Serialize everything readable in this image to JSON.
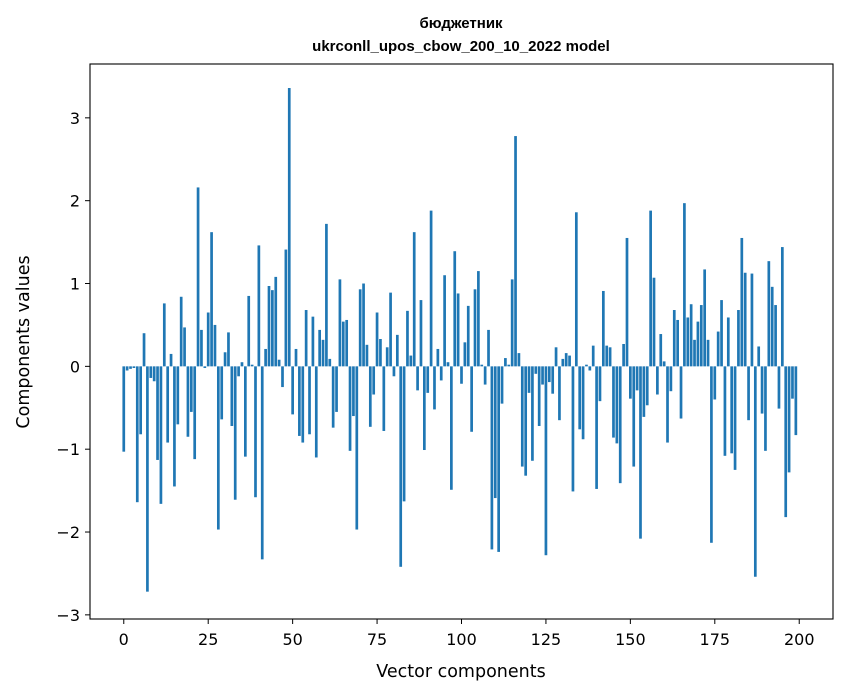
{
  "chart_data": {
    "type": "bar",
    "title": "бюджетник",
    "subtitle": "ukrconll_upos_cbow_200_10_2022 model",
    "xlabel": "Vector components",
    "ylabel": "Components values",
    "xlim": [
      -10,
      210
    ],
    "ylim": [
      -3.05,
      3.65
    ],
    "xticks": [
      0,
      25,
      50,
      75,
      100,
      125,
      150,
      175,
      200
    ],
    "yticks": [
      -3,
      -2,
      -1,
      0,
      1,
      2,
      3
    ],
    "ytick_labels": [
      "−3",
      "−2",
      "−1",
      "0",
      "1",
      "2",
      "3"
    ],
    "bar_color": "#1f77b4",
    "values": [
      -1.03,
      -0.05,
      -0.03,
      -0.02,
      -1.64,
      -0.82,
      0.4,
      -2.72,
      -0.14,
      -0.18,
      -1.13,
      -1.66,
      0.76,
      -0.92,
      0.15,
      -1.45,
      -0.7,
      0.84,
      0.47,
      -0.85,
      -0.55,
      -1.12,
      2.16,
      0.44,
      -0.02,
      0.65,
      1.62,
      0.5,
      -1.97,
      -0.64,
      0.17,
      0.41,
      -0.72,
      -1.61,
      -0.12,
      0.05,
      -1.09,
      0.85,
      0.02,
      -1.58,
      1.46,
      -2.33,
      0.21,
      0.97,
      0.92,
      1.08,
      0.08,
      -0.25,
      1.41,
      3.36,
      -0.58,
      0.21,
      -0.84,
      -0.92,
      0.68,
      -0.82,
      0.6,
      -1.1,
      0.44,
      0.32,
      1.72,
      0.09,
      -0.74,
      -0.55,
      1.05,
      0.54,
      0.56,
      -1.02,
      -0.6,
      -1.97,
      0.93,
      1.0,
      0.26,
      -0.73,
      -0.34,
      0.65,
      0.33,
      -0.78,
      0.23,
      0.89,
      -0.12,
      0.38,
      -2.42,
      -1.63,
      0.67,
      0.13,
      1.62,
      -0.29,
      0.8,
      -1.01,
      -0.32,
      1.88,
      -0.52,
      0.21,
      -0.17,
      1.1,
      0.05,
      -1.49,
      1.39,
      0.88,
      -0.21,
      0.29,
      0.73,
      -0.79,
      0.93,
      1.15,
      0.02,
      -0.22,
      0.44,
      -2.21,
      -1.59,
      -2.24,
      -0.45,
      0.1,
      0.02,
      1.05,
      2.78,
      0.16,
      -1.21,
      -1.32,
      -0.32,
      -1.14,
      -0.09,
      -0.72,
      -0.22,
      -2.28,
      -0.19,
      -0.33,
      0.23,
      -0.65,
      0.09,
      0.16,
      0.13,
      -1.51,
      1.86,
      -0.76,
      -0.88,
      0.02,
      -0.05,
      0.25,
      -1.48,
      -0.42,
      0.91,
      0.25,
      0.23,
      -0.86,
      -0.93,
      -1.41,
      0.27,
      1.55,
      -0.39,
      -1.21,
      -0.29,
      -2.08,
      -0.61,
      -0.47,
      1.88,
      1.07,
      -0.34,
      0.39,
      0.06,
      -0.92,
      -0.3,
      0.68,
      0.56,
      -0.63,
      1.97,
      0.59,
      0.75,
      0.32,
      0.54,
      0.74,
      1.17,
      0.32,
      -2.13,
      -0.4,
      0.42,
      0.8,
      -1.08,
      0.59,
      -1.05,
      -1.25,
      0.68,
      1.55,
      1.13,
      -0.65,
      1.12,
      -2.54,
      0.24,
      -0.57,
      -1.02,
      1.27,
      0.96,
      0.74,
      -0.51,
      1.44,
      -1.82,
      -1.28,
      -0.39,
      -0.83
    ]
  }
}
